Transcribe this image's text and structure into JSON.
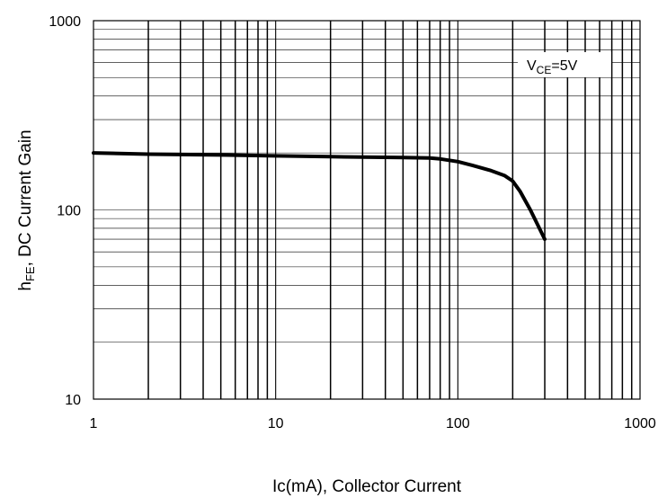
{
  "chart_data": {
    "type": "line",
    "xlabel": "Ic(mA), Collector Current",
    "ylabel": {
      "prefix": "h",
      "sub": "FE",
      "rest": ", DC Current Gain"
    },
    "x_scale": "log",
    "y_scale": "log",
    "xlim": [
      1,
      1000
    ],
    "ylim": [
      10,
      1000
    ],
    "grid": true,
    "x_ticks": [
      {
        "value": 1,
        "label": "1"
      },
      {
        "value": 10,
        "label": "10"
      },
      {
        "value": 100,
        "label": "100"
      },
      {
        "value": 1000,
        "label": "1000"
      }
    ],
    "y_ticks": [
      {
        "value": 10,
        "label": "10"
      },
      {
        "value": 100,
        "label": "100"
      },
      {
        "value": 1000,
        "label": "1000"
      }
    ],
    "annotation": {
      "main": "V",
      "sub": "CE",
      "rest": "=5V"
    },
    "series": [
      {
        "x": [
          1,
          2,
          5,
          10,
          20,
          50,
          70,
          80,
          100,
          120,
          150,
          180,
          200,
          220,
          250,
          280,
          300
        ],
        "y": [
          200,
          197,
          195,
          193,
          191,
          189,
          188,
          186,
          180,
          172,
          162,
          152,
          142,
          125,
          100,
          80,
          70
        ]
      }
    ]
  }
}
